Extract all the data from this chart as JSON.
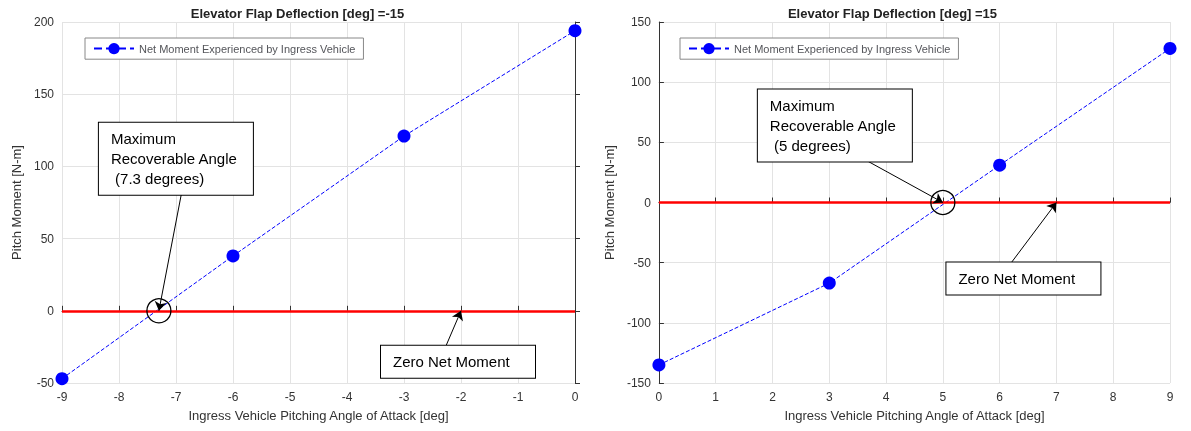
{
  "chart_data": [
    {
      "type": "line",
      "title": "Elevator Flap Deflection [deg] =-15",
      "xlabel": "Ingress Vehicle Pitching Angle of Attack [deg]",
      "ylabel": "Pitch Moment [N-m]",
      "x": [
        -9,
        -6,
        -3,
        0
      ],
      "series": [
        {
          "name": "Net Moment Experienced by Ingress Vehicle",
          "color": "#0000ff",
          "values": [
            -47,
            38,
            121,
            194
          ]
        }
      ],
      "xlim": [
        -9,
        0
      ],
      "xticks": [
        -9,
        -8,
        -7,
        -6,
        -5,
        -4,
        -3,
        -2,
        -1,
        0
      ],
      "ylim": [
        -50,
        200
      ],
      "yticks": [
        -50,
        0,
        50,
        100,
        150,
        200
      ],
      "ref_lines": [
        {
          "axis": "y",
          "value": 0,
          "label": null,
          "color": "#ff0000"
        }
      ],
      "annotations": [
        {
          "text": "Maximum Recoverable Angle (7.3 degrees)",
          "x": -7.3,
          "y": 0
        },
        {
          "text": "Zero Net Moment",
          "x": -2,
          "y": 0
        }
      ],
      "grid": true,
      "legend": "top left",
      "marker": "circle",
      "line_style": "dashed"
    },
    {
      "type": "line",
      "title": "Elevator Flap Deflection [deg] =15",
      "xlabel": "Ingress Vehicle Pitching Angle of Attack [deg]",
      "ylabel": "Pitch Moment [N-m]",
      "x": [
        0,
        3,
        6,
        9
      ],
      "series": [
        {
          "name": "Net Moment Experienced by Ingress Vehicle",
          "color": "#0000ff",
          "values": [
            -135,
            -67,
            31,
            128
          ]
        }
      ],
      "xlim": [
        0,
        9
      ],
      "xticks": [
        0,
        1,
        2,
        3,
        4,
        5,
        6,
        7,
        8,
        9
      ],
      "ylim": [
        -150,
        150
      ],
      "yticks": [
        -150,
        -100,
        -50,
        0,
        50,
        100,
        150
      ],
      "ref_lines": [
        {
          "axis": "y",
          "value": 0,
          "label": null,
          "color": "#ff0000"
        }
      ],
      "annotations": [
        {
          "text": "Maximum Recoverable Angle (5 degrees)",
          "x": 5,
          "y": 0
        },
        {
          "text": "Zero Net Moment",
          "x": 7,
          "y": 0
        }
      ],
      "grid": true,
      "legend": "top left",
      "marker": "circle",
      "line_style": "dashed"
    }
  ]
}
